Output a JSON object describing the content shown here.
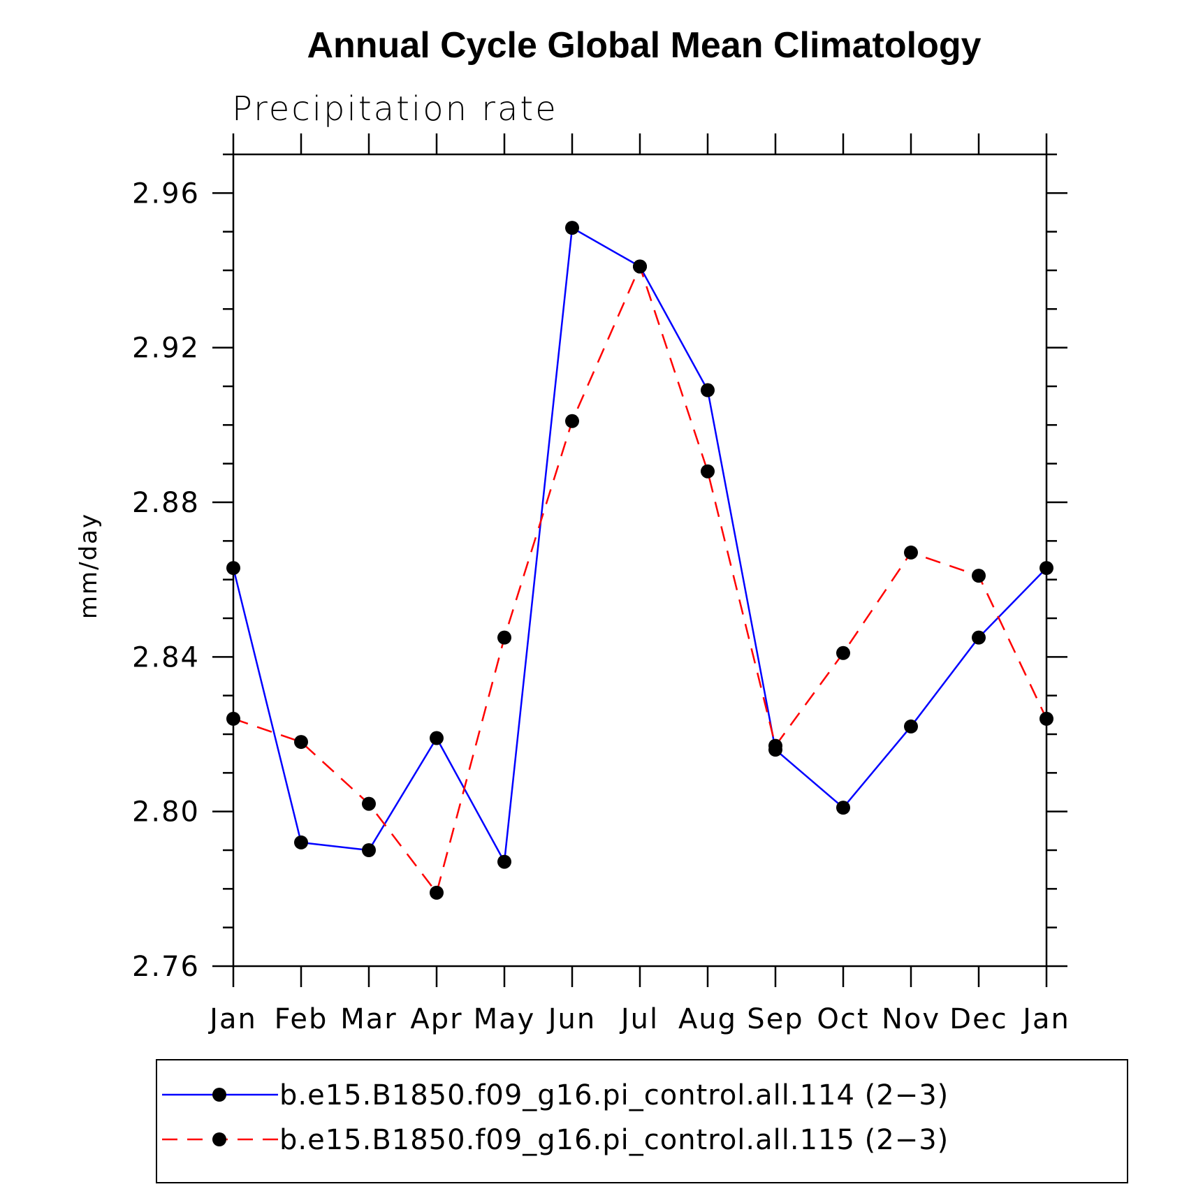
{
  "chart_data": {
    "type": "line",
    "title": "Annual Cycle Global Mean Climatology",
    "subtitle": "Precipitation rate",
    "xlabel": "",
    "ylabel": "mm/day",
    "categories": [
      "Jan",
      "Feb",
      "Mar",
      "Apr",
      "May",
      "Jun",
      "Jul",
      "Aug",
      "Sep",
      "Oct",
      "Nov",
      "Dec",
      "Jan"
    ],
    "ylim": [
      2.76,
      2.97
    ],
    "yticks": [
      "2.76",
      "2.80",
      "2.84",
      "2.88",
      "2.92",
      "2.96"
    ],
    "series": [
      {
        "name": "b.e15.B1850.f09_g16.pi_control.all.114 (2−3)",
        "color": "#0000ff",
        "dash": "solid",
        "marker": "filled-circle",
        "values": [
          2.863,
          2.792,
          2.79,
          2.819,
          2.787,
          2.951,
          2.941,
          2.909,
          2.816,
          2.801,
          2.822,
          2.845,
          2.863
        ]
      },
      {
        "name": "b.e15.B1850.f09_g16.pi_control.all.115 (2−3)",
        "color": "#ff0000",
        "dash": "dashed",
        "marker": "filled-circle",
        "values": [
          2.824,
          2.818,
          2.802,
          2.779,
          2.845,
          2.901,
          2.941,
          2.888,
          2.817,
          2.841,
          2.867,
          2.861,
          2.824
        ]
      }
    ],
    "legend": "bottom"
  }
}
